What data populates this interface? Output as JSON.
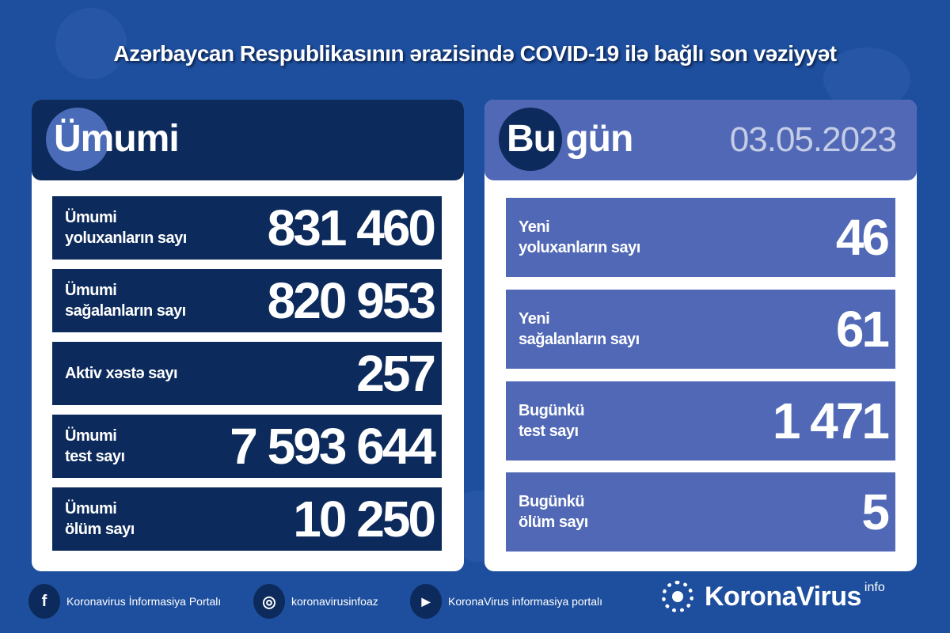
{
  "title": "Azərbaycan Respublikasının ərazisində COVID-19 ilə bağlı son vəziyyət",
  "total": {
    "heading": "Ümumi",
    "rows": [
      {
        "label1": "Ümumi",
        "label2": "yoluxanların sayı",
        "value": "831 460"
      },
      {
        "label1": "Ümumi",
        "label2": "sağalanların sayı",
        "value": "820 953"
      },
      {
        "label1": "Aktiv xəstə sayı",
        "label2": "",
        "value": "257"
      },
      {
        "label1": "Ümumi",
        "label2": "test sayı",
        "value": "7 593 644"
      },
      {
        "label1": "Ümumi",
        "label2": "ölüm sayı",
        "value": "10 250"
      }
    ]
  },
  "today": {
    "heading": "Bu gün",
    "date": "03.05.2023",
    "rows": [
      {
        "label1": "Yeni",
        "label2": "yoluxanların sayı",
        "value": "46"
      },
      {
        "label1": "Yeni",
        "label2": "sağalanların sayı",
        "value": "61"
      },
      {
        "label1": "Bugünkü",
        "label2": "test sayı",
        "value": "1 471"
      },
      {
        "label1": "Bugünkü",
        "label2": "ölüm sayı",
        "value": "5"
      }
    ]
  },
  "footer": {
    "facebook": "Koronavirus İnformasiya Portalı",
    "instagram": "koronavirusinfoaz",
    "youtube": "KoronaVirus informasiya portalı",
    "brand": "KoronaVirus",
    "brand_sup": "info"
  },
  "colors": {
    "background": "#1e4f9e",
    "navy": "#0c2a5b",
    "today_blue": "#5068b5"
  }
}
